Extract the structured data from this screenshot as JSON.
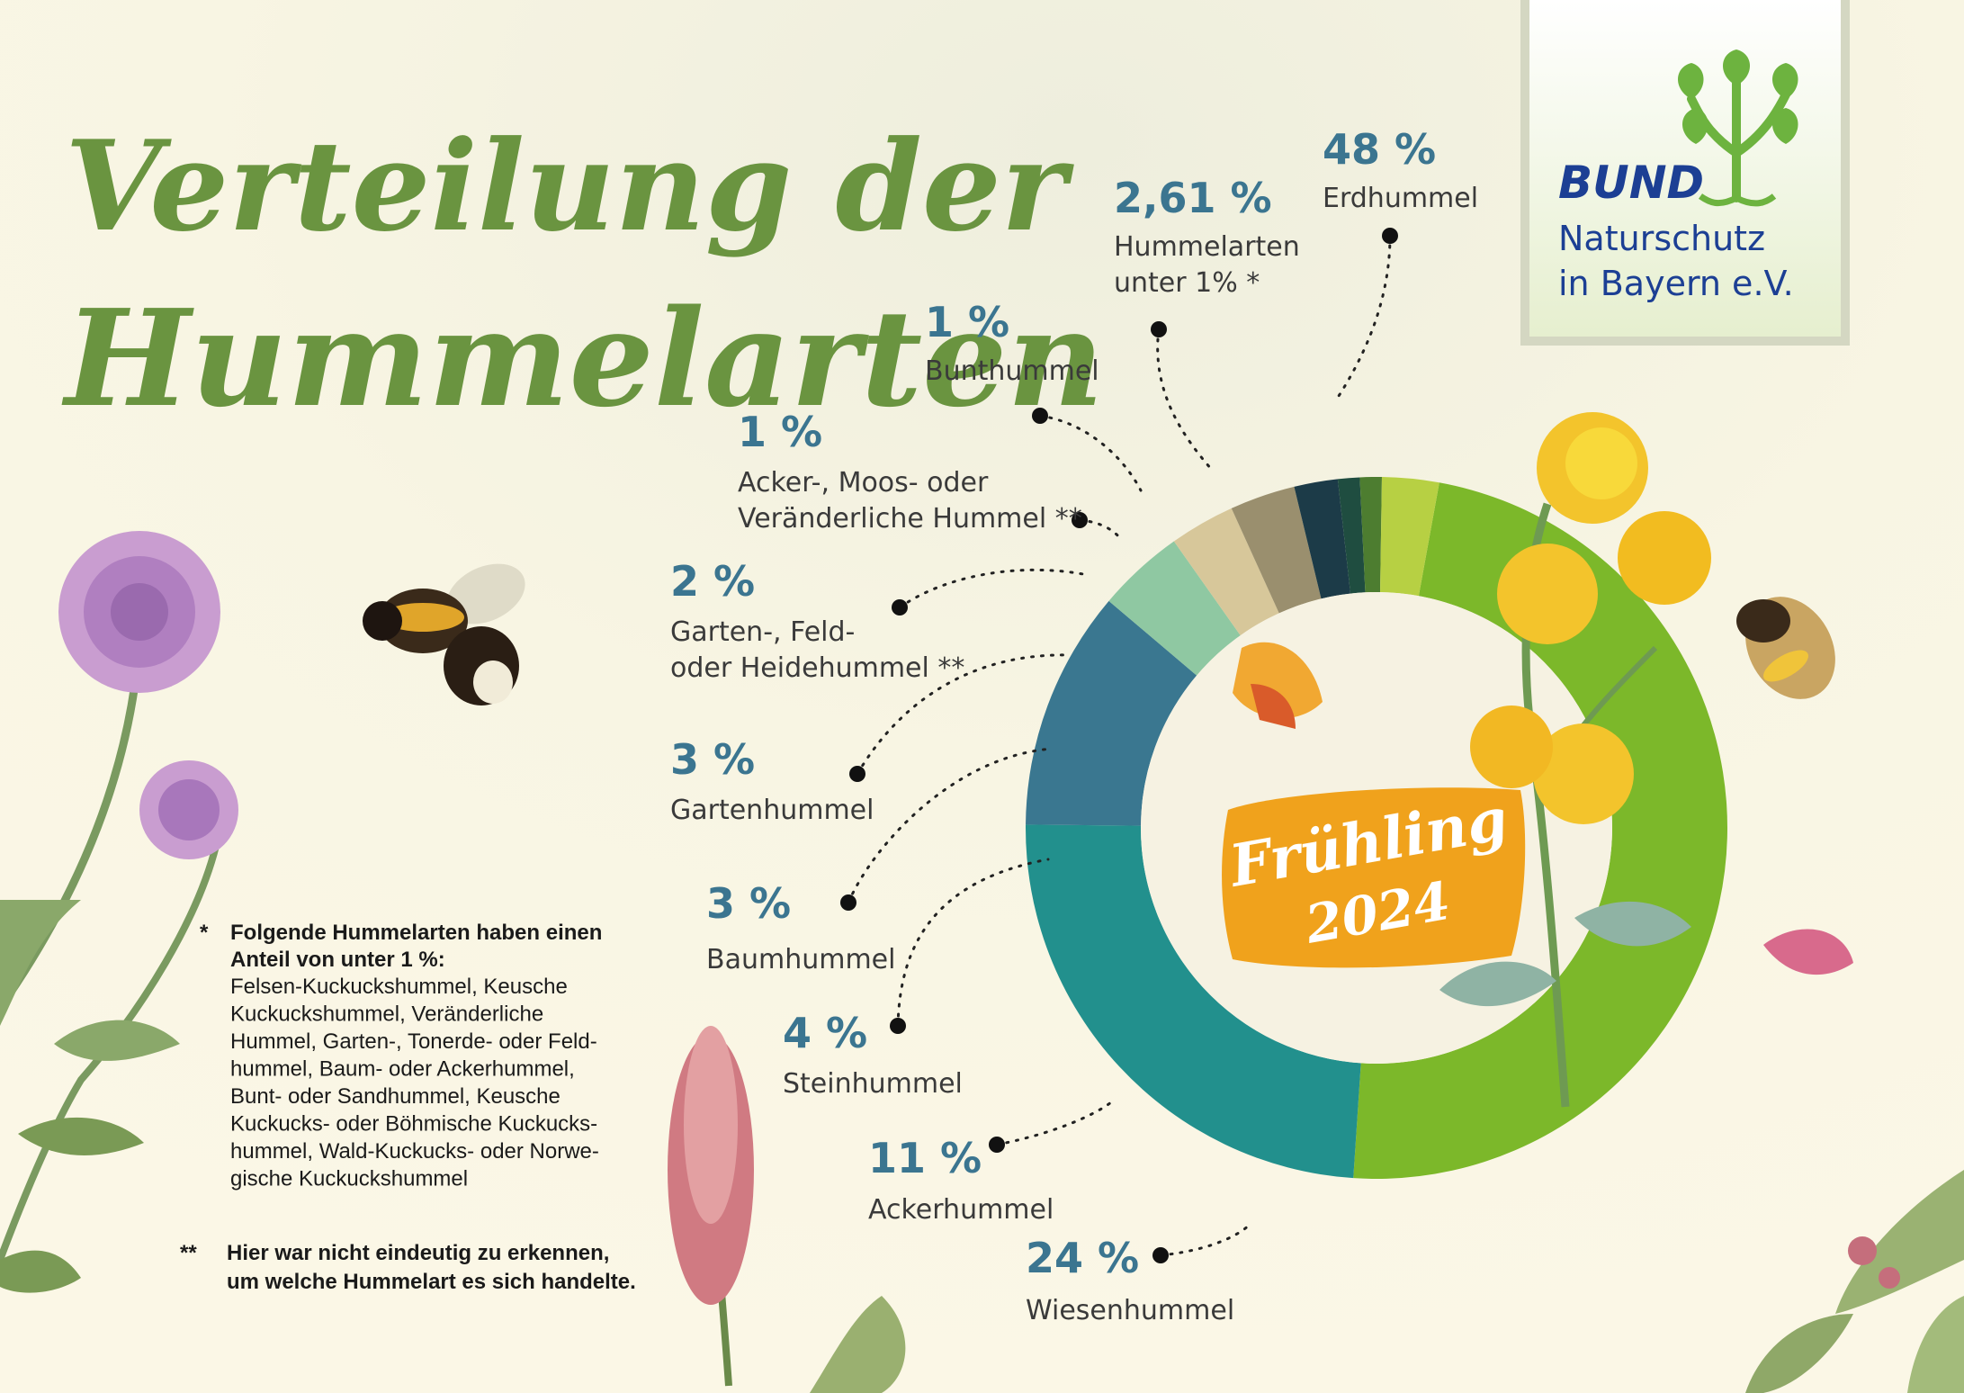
{
  "title": {
    "line1": "Verteilung der",
    "line2": "Hummelarten"
  },
  "season_badge": {
    "line1": "Frühling",
    "line2": "2024"
  },
  "logo": {
    "brand": "BUND",
    "line1": "Naturschutz",
    "line2": "in Bayern e.V."
  },
  "footnotes": {
    "star1_marker": "*",
    "star1_heading_1": "Folgende Hummelarten haben einen",
    "star1_heading_2": "Anteil von unter 1 %:",
    "star1_lines": [
      "Felsen-Kuckuckshummel,  Keusche",
      "Kuckuckshummel, Veränderliche",
      "Hummel, Garten-, Tonerde- oder Feld-",
      "hummel, Baum- oder Ackerhummel,",
      "Bunt- oder Sandhummel, Keusche",
      "Kuckucks- oder Böhmische Kuckucks-",
      "hummel, Wald-Kuckucks- oder Norwe-",
      "gische Kuckuckshummel"
    ],
    "star2_marker": "**",
    "star2_lines": [
      "Hier war nicht eindeutig zu erkennen,",
      "um welche Hummelart es sich handelte."
    ]
  },
  "colors": {
    "background": "#f8f5e4",
    "title": "#6a9440",
    "label_value": "#3b7590",
    "label_text": "#3a3a3a",
    "badge": "#f0a21c",
    "logo_green": "#6db33f",
    "logo_blue": "#1c3f94"
  },
  "chart_data": {
    "type": "pie",
    "title": "Verteilung der Hummelarten",
    "series": [
      {
        "label": "Erdhummel",
        "value_text": "48 %",
        "value": 48,
        "color": "#7cb82a"
      },
      {
        "label": "Wiesenhummel",
        "value_text": "24 %",
        "value": 24,
        "color": "#22908d"
      },
      {
        "label": "Ackerhummel",
        "value_text": "11 %",
        "value": 11,
        "color": "#3a7790"
      },
      {
        "label": "Steinhummel",
        "value_text": "4 %",
        "value": 4,
        "color": "#8fc8a2"
      },
      {
        "label": "Baumhummel",
        "value_text": "3 %",
        "value": 3,
        "color": "#d7c79a"
      },
      {
        "label": "Gartenhummel",
        "value_text": "3 %",
        "value": 3,
        "color": "#9a8f6e"
      },
      {
        "label": "Garten-, Feld-\noder Heidehummel **",
        "value_text": "2 %",
        "value": 2,
        "color": "#1c3b48"
      },
      {
        "label": "Acker-, Moos- oder\nVeränderliche Hummel **",
        "value_text": "1 %",
        "value": 1,
        "color": "#1f4d40"
      },
      {
        "label": "Bunthummel",
        "value_text": "1 %",
        "value": 1,
        "color": "#4d7d30"
      },
      {
        "label": "Hummelarten\nunter 1% *",
        "value_text": "2,61 %",
        "value": 2.61,
        "color": "#b7d043"
      }
    ]
  }
}
